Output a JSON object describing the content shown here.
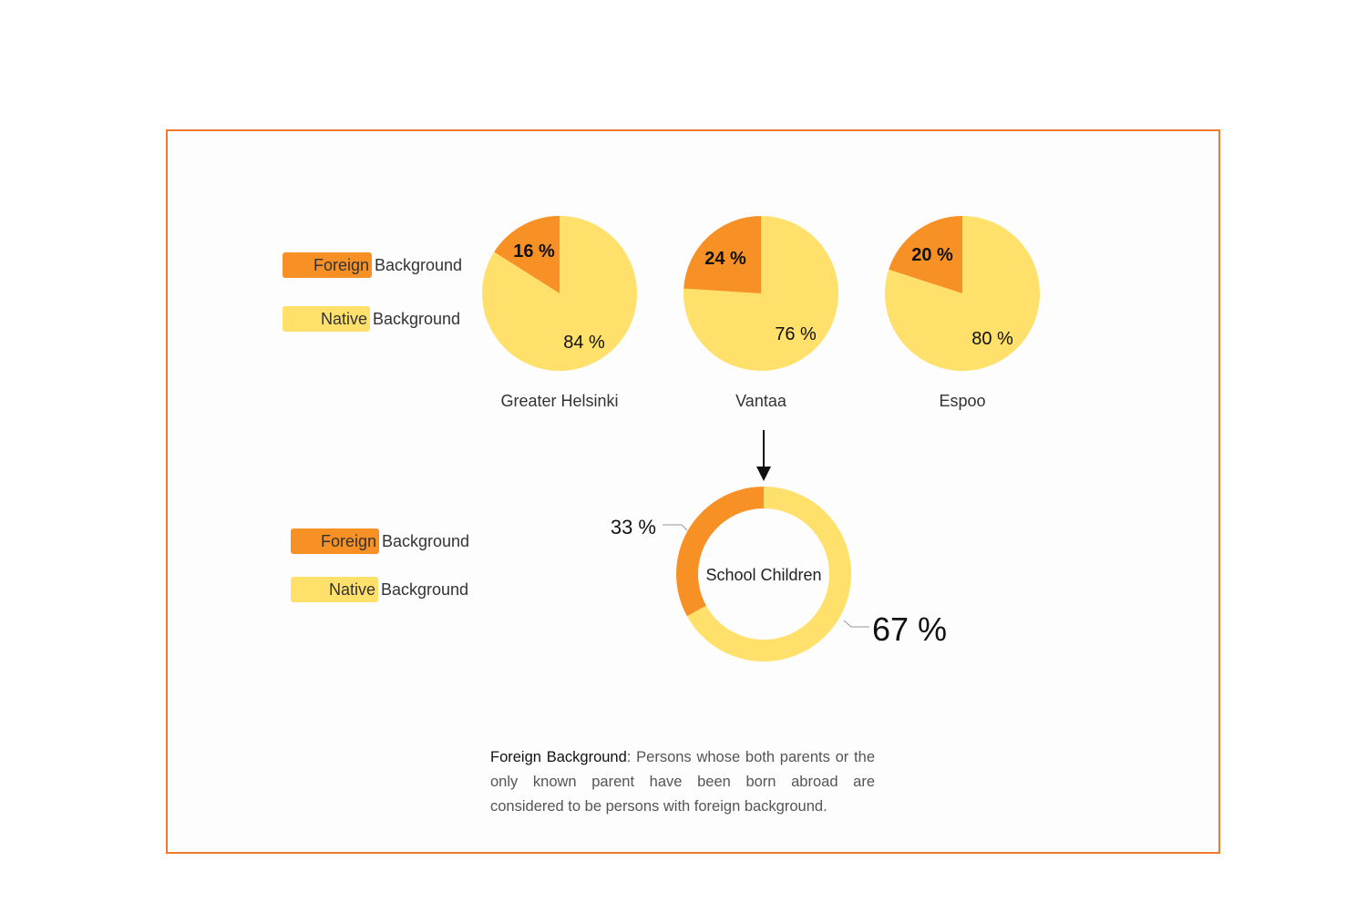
{
  "colors": {
    "foreign": "#f79125",
    "native": "#fee06b",
    "frame": "#f07a2a"
  },
  "legend_top": {
    "foreign_word": "Foreign",
    "native_word": "Native",
    "suffix": "Background"
  },
  "legend_bottom": {
    "foreign_word": "Foreign",
    "native_word": "Native",
    "suffix": "Background"
  },
  "chart_data": [
    {
      "type": "pie",
      "title": "Greater Helsinki",
      "series": [
        {
          "name": "Foreign Background",
          "value": 16
        },
        {
          "name": "Native Background",
          "value": 84
        }
      ],
      "labels": [
        "16 %",
        "84 %"
      ]
    },
    {
      "type": "pie",
      "title": "Vantaa",
      "series": [
        {
          "name": "Foreign Background",
          "value": 24
        },
        {
          "name": "Native Background",
          "value": 76
        }
      ],
      "labels": [
        "24 %",
        "76 %"
      ]
    },
    {
      "type": "pie",
      "title": "Espoo",
      "series": [
        {
          "name": "Foreign Background",
          "value": 20
        },
        {
          "name": "Native Background",
          "value": 80
        }
      ],
      "labels": [
        "20 %",
        "80 %"
      ]
    },
    {
      "type": "pie",
      "title": "School Children",
      "series": [
        {
          "name": "Foreign Background",
          "value": 33
        },
        {
          "name": "Native Background",
          "value": 67
        }
      ],
      "labels": [
        "33 %",
        "67 %"
      ]
    }
  ],
  "note": {
    "term": "Foreign Background",
    "definition": ": Persons whose both parents or the only known parent have been born abroad are considered to be persons with foreign background."
  }
}
